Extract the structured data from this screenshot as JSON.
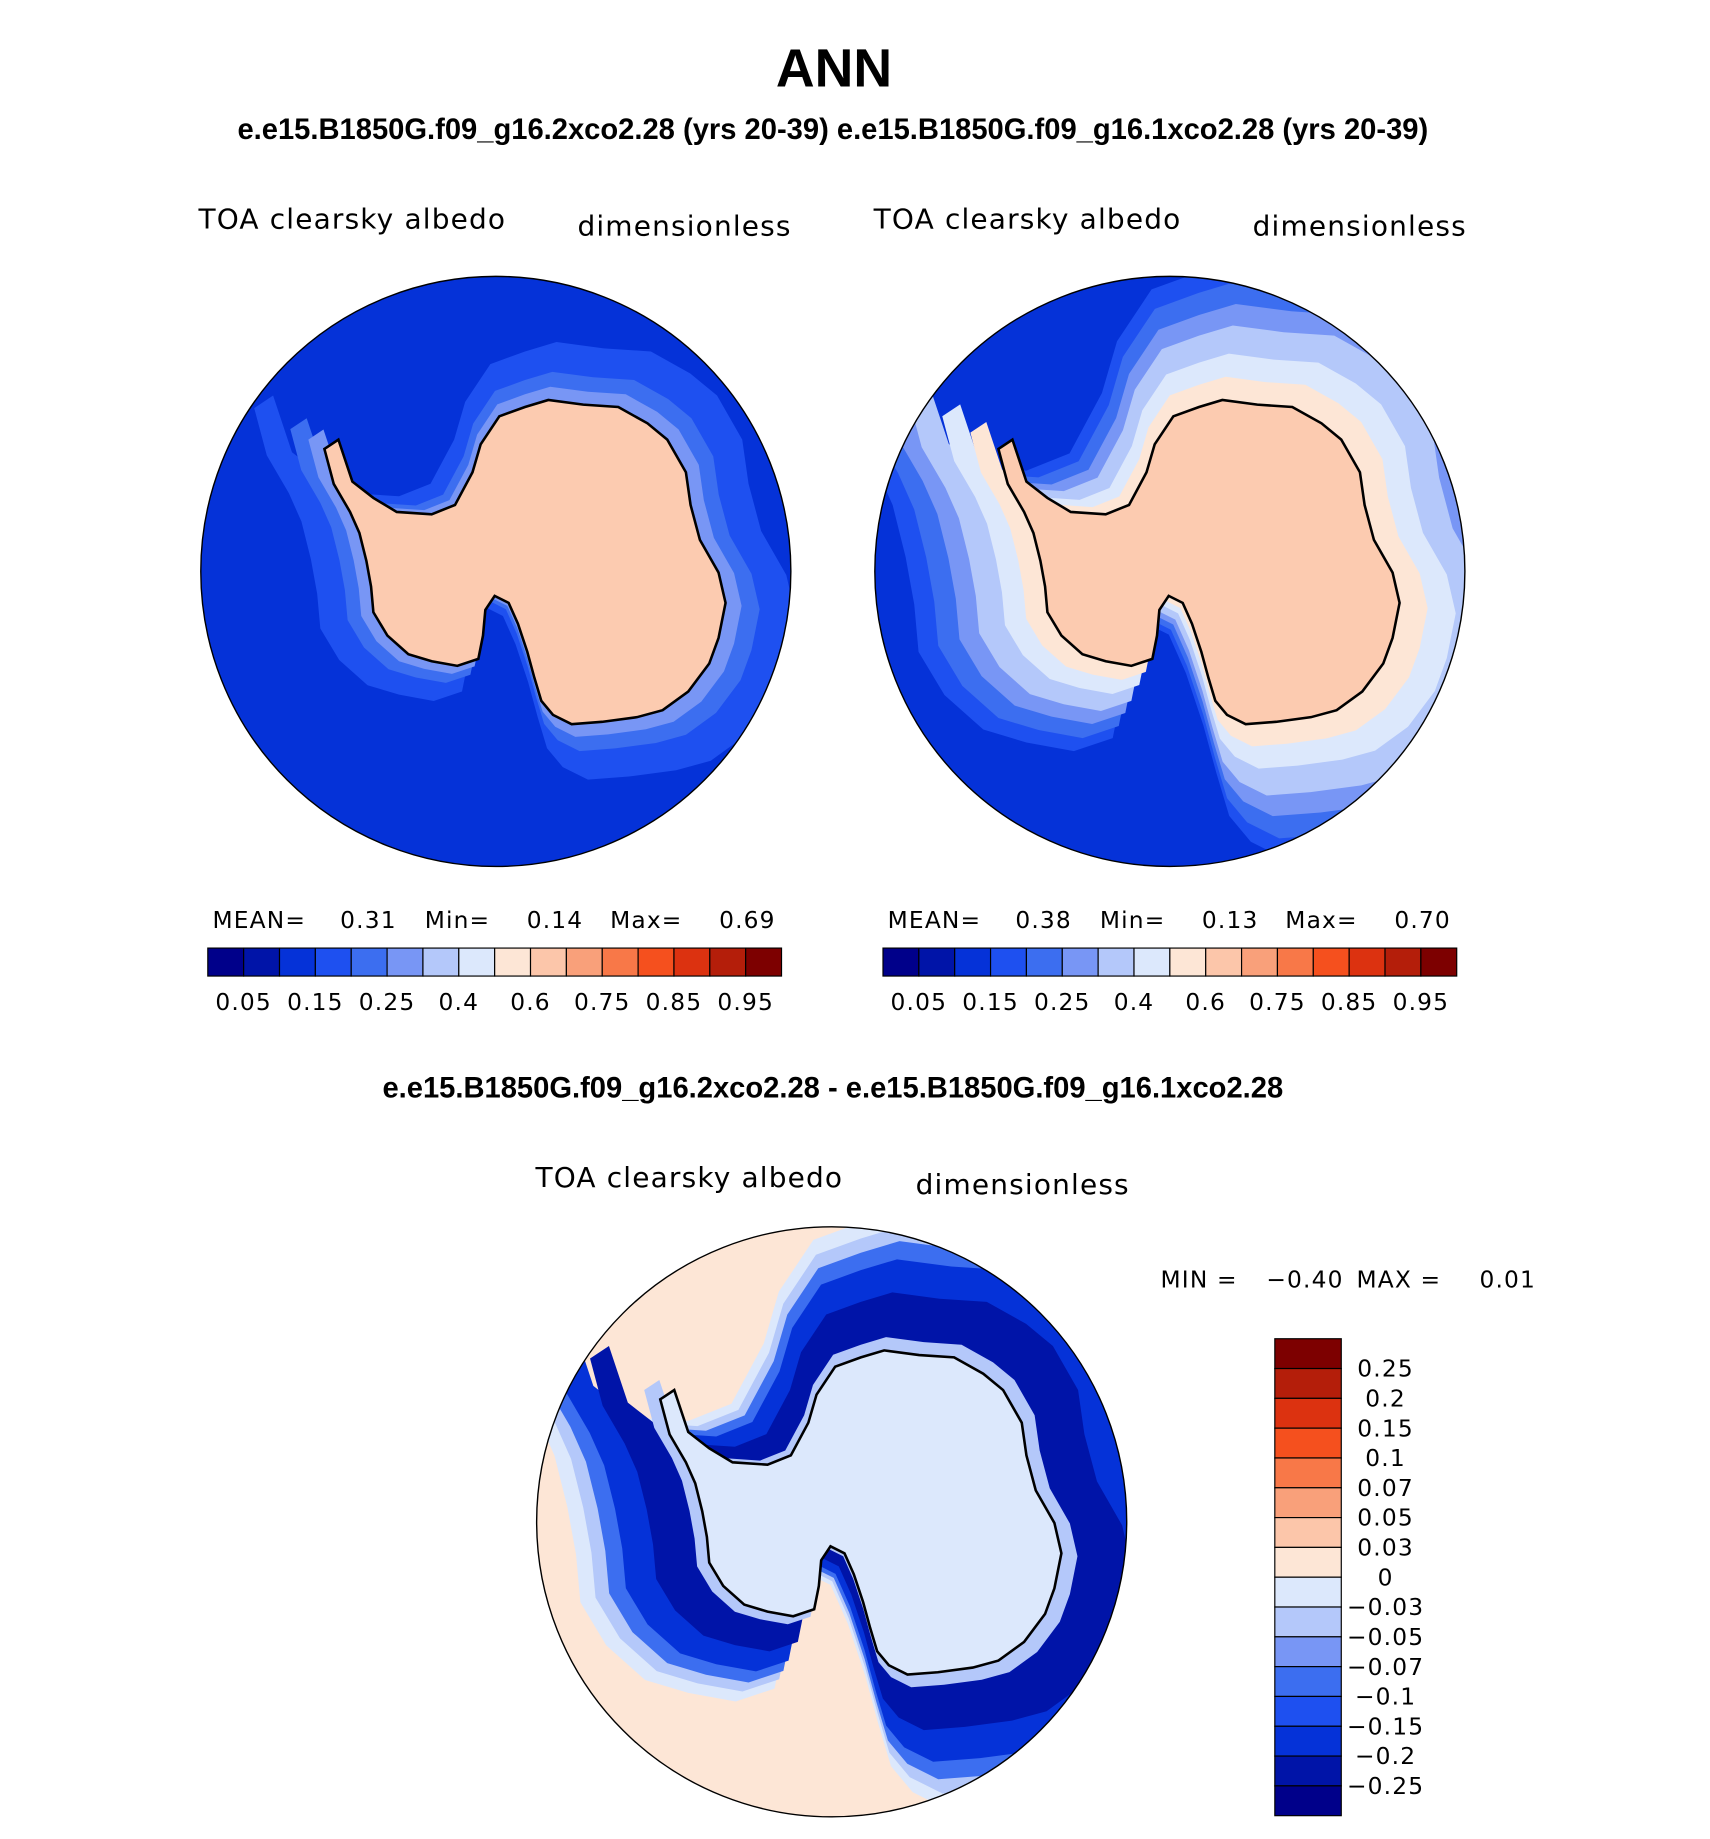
{
  "title": "ANN",
  "subtitle": "e.e15.B1850G.f09_g16.2xco2.28 (yrs 20-39) e.e15.B1850G.f09_g16.1xco2.28 (yrs 20-39)",
  "panels": [
    {
      "variable": "TOA clearsky albedo",
      "units": "dimensionless",
      "stats": [
        {
          "label": "MEAN=",
          "value": "0.31"
        },
        {
          "label": "Min=",
          "value": "0.14"
        },
        {
          "label": "Max=",
          "value": "0.69"
        }
      ]
    },
    {
      "variable": "TOA clearsky albedo",
      "units": "dimensionless",
      "stats": [
        {
          "label": "MEAN=",
          "value": "0.38"
        },
        {
          "label": "Min=",
          "value": "0.13"
        },
        {
          "label": "Max=",
          "value": "0.70"
        }
      ]
    }
  ],
  "colorbar": {
    "colors": [
      "#00008a",
      "#0014a8",
      "#0532d8",
      "#1e50f0",
      "#3c6ef0",
      "#7896f5",
      "#b4c8fa",
      "#dce8fc",
      "#fde6d6",
      "#fcc6aa",
      "#f9a07a",
      "#f87848",
      "#f5501e",
      "#dc3210",
      "#b41e0a",
      "#7d0000"
    ],
    "labels": [
      "0.05",
      "0.15",
      "0.25",
      "0.4",
      "0.6",
      "0.75",
      "0.85",
      "0.95"
    ]
  },
  "difference": {
    "title": "e.e15.B1850G.f09_g16.2xco2.28 - e.e15.B1850G.f09_g16.1xco2.28",
    "variable": "TOA clearsky albedo",
    "units": "dimensionless",
    "stats": [
      {
        "label": "MIN =",
        "value": "−0.40"
      },
      {
        "label": "MAX =",
        "value": "0.01"
      }
    ],
    "colorbar": {
      "colors": [
        "#7d0000",
        "#b41e0a",
        "#dc3210",
        "#f5501e",
        "#f87848",
        "#f9a07a",
        "#fcc6aa",
        "#fde6d6",
        "#dce8fc",
        "#b4c8fa",
        "#7896f5",
        "#3c6ef0",
        "#1e50f0",
        "#0532d8",
        "#0014a8",
        "#00008a"
      ],
      "labels": [
        "0.25",
        "0.2",
        "0.15",
        "0.1",
        "0.07",
        "0.05",
        "0.03",
        "0",
        "−0.03",
        "−0.05",
        "−0.07",
        "−0.1",
        "−0.15",
        "−0.2",
        "−0.25"
      ]
    }
  }
}
